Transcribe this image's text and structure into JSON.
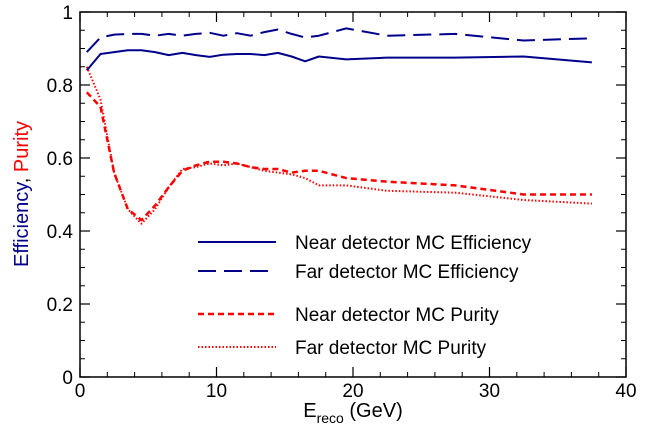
{
  "chart_data": {
    "type": "line",
    "xlim": [
      0,
      40
    ],
    "ylim": [
      0,
      1
    ],
    "x_ticks": [
      "0",
      "10",
      "20",
      "30",
      "40"
    ],
    "y_ticks": [
      "0",
      "0.2",
      "0.4",
      "0.6",
      "0.8",
      "1"
    ],
    "xlabel": {
      "main": "E",
      "sub": "reco",
      "rest": " (GeV)"
    },
    "ylabel": {
      "part1": "Efficiency",
      "sep": ", ",
      "part2": "Purity"
    },
    "grid": false,
    "legend_position": "lower-right",
    "series": [
      {
        "name": "Near detector MC Efficiency",
        "color": "#00008B",
        "style": "solid",
        "x": [
          0.5,
          1.5,
          2.5,
          3.5,
          4.5,
          5.5,
          6.5,
          7.5,
          8.5,
          9.5,
          10.5,
          11.5,
          12.5,
          13.5,
          14.5,
          15.5,
          16.5,
          17.5,
          19.5,
          22.5,
          27.5,
          32.5,
          37.5
        ],
        "y": [
          0.84,
          0.885,
          0.89,
          0.895,
          0.895,
          0.89,
          0.882,
          0.888,
          0.882,
          0.877,
          0.883,
          0.885,
          0.885,
          0.882,
          0.888,
          0.878,
          0.865,
          0.878,
          0.87,
          0.875,
          0.875,
          0.878,
          0.862
        ]
      },
      {
        "name": "Far detector MC Efficiency",
        "color": "#00008B",
        "style": "long-dash",
        "x": [
          0.5,
          1.5,
          2.5,
          3.5,
          4.5,
          5.5,
          6.5,
          7.5,
          8.5,
          9.5,
          10.5,
          11.5,
          12.5,
          13.5,
          14.5,
          15.5,
          16.5,
          17.5,
          19.5,
          22.5,
          27.5,
          32.5,
          37.5
        ],
        "y": [
          0.89,
          0.93,
          0.938,
          0.94,
          0.94,
          0.935,
          0.94,
          0.935,
          0.94,
          0.943,
          0.935,
          0.942,
          0.935,
          0.945,
          0.952,
          0.94,
          0.93,
          0.935,
          0.955,
          0.935,
          0.94,
          0.922,
          0.928
        ]
      },
      {
        "name": "Near detector MC Purity",
        "color": "#ff0000",
        "style": "short-dash",
        "x": [
          0.5,
          1.5,
          2.5,
          3.5,
          4.5,
          5.5,
          6.5,
          7.5,
          8.5,
          9.5,
          10.5,
          11.5,
          12.5,
          13.5,
          14.5,
          15.5,
          16.5,
          17.5,
          19.5,
          22.5,
          27.5,
          32.5,
          37.5
        ],
        "y": [
          0.78,
          0.74,
          0.56,
          0.46,
          0.43,
          0.47,
          0.52,
          0.565,
          0.58,
          0.59,
          0.59,
          0.585,
          0.575,
          0.57,
          0.57,
          0.56,
          0.565,
          0.565,
          0.545,
          0.535,
          0.525,
          0.5,
          0.5
        ]
      },
      {
        "name": "Far detector MC Purity",
        "color": "#ff0000",
        "style": "dotted",
        "x": [
          0.5,
          1.5,
          2.5,
          3.5,
          4.5,
          5.5,
          6.5,
          7.5,
          8.5,
          9.5,
          10.5,
          11.5,
          12.5,
          13.5,
          14.5,
          15.5,
          16.5,
          17.5,
          19.5,
          22.5,
          27.5,
          32.5,
          37.5
        ],
        "y": [
          0.85,
          0.76,
          0.56,
          0.46,
          0.42,
          0.46,
          0.52,
          0.57,
          0.575,
          0.585,
          0.58,
          0.585,
          0.575,
          0.565,
          0.56,
          0.555,
          0.545,
          0.525,
          0.525,
          0.51,
          0.505,
          0.485,
          0.475
        ]
      }
    ]
  }
}
